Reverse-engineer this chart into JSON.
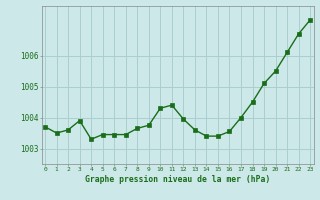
{
  "x": [
    0,
    1,
    2,
    3,
    4,
    5,
    6,
    7,
    8,
    9,
    10,
    11,
    12,
    13,
    14,
    15,
    16,
    17,
    18,
    19,
    20,
    21,
    22,
    23
  ],
  "y": [
    1003.7,
    1003.5,
    1003.6,
    1003.9,
    1003.3,
    1003.45,
    1003.45,
    1003.45,
    1003.65,
    1003.75,
    1004.3,
    1004.4,
    1003.95,
    1003.6,
    1003.4,
    1003.4,
    1003.55,
    1004.0,
    1004.5,
    1005.1,
    1005.5,
    1006.1,
    1006.7,
    1007.15
  ],
  "line_color": "#1a6e1a",
  "marker_color": "#1a6e1a",
  "bg_color": "#cce8e8",
  "grid_color": "#aacece",
  "title": "Graphe pression niveau de la mer (hPa)",
  "title_color": "#1a6e1a",
  "xlabel_ticks": [
    "0",
    "1",
    "2",
    "3",
    "4",
    "5",
    "6",
    "7",
    "8",
    "9",
    "10",
    "11",
    "12",
    "13",
    "14",
    "15",
    "16",
    "17",
    "18",
    "19",
    "20",
    "21",
    "22",
    "23"
  ],
  "ytick_labels": [
    "1003",
    "1004",
    "1005",
    "1006"
  ],
  "yticks": [
    1003,
    1004,
    1005,
    1006
  ],
  "ylim": [
    1002.5,
    1007.6
  ],
  "xlim": [
    -0.3,
    23.3
  ]
}
